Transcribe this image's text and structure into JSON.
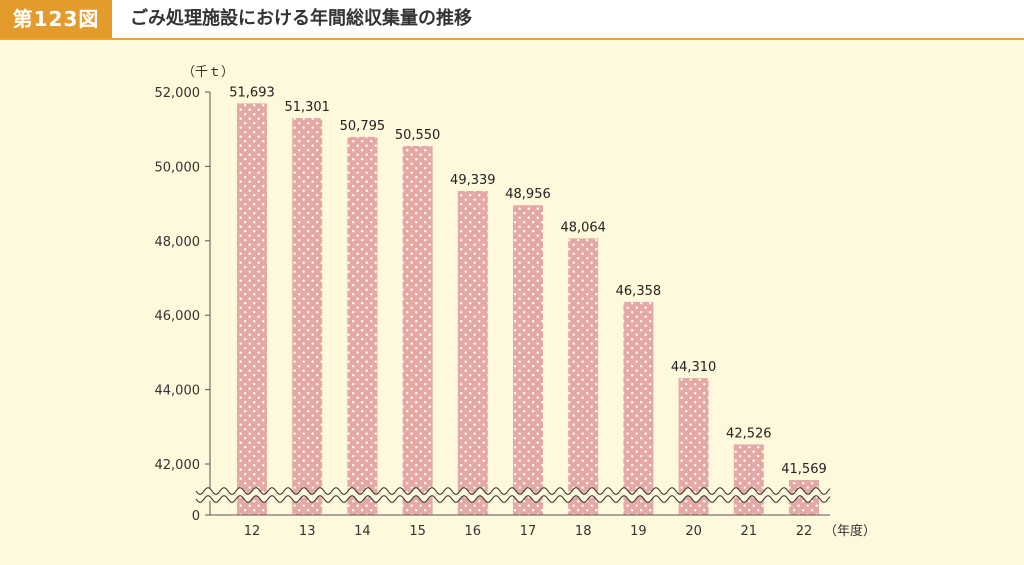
{
  "header": {
    "figure_label": "第123図",
    "title": "ごみ処理施設における年間総収集量の推移"
  },
  "colors": {
    "bar": "#e4a9a4",
    "dot": "#ffffff",
    "axis": "#555555",
    "accent": "#e39b2c"
  },
  "chart_data": {
    "type": "bar",
    "title": "ごみ処理施設における年間総収集量の推移",
    "ylabel": "（千ｔ）",
    "xlabel": "（年度）",
    "categories": [
      "12",
      "13",
      "14",
      "15",
      "16",
      "17",
      "18",
      "19",
      "20",
      "21",
      "22"
    ],
    "values": [
      51693,
      51301,
      50795,
      50550,
      49339,
      48956,
      48064,
      46358,
      44310,
      42526,
      41569
    ],
    "value_labels": [
      "51,693",
      "51,301",
      "50,795",
      "50,550",
      "49,339",
      "48,956",
      "48,064",
      "46,358",
      "44,310",
      "42,526",
      "41,569"
    ],
    "yticks": [
      42000,
      44000,
      46000,
      48000,
      50000,
      52000
    ],
    "ytick_labels": [
      "42,000",
      "44,000",
      "46,000",
      "48,000",
      "50,000",
      "52,000"
    ],
    "zero_label": "0",
    "ylim": [
      41000,
      52000
    ],
    "axis_break": true,
    "grid": false,
    "legend": "none"
  }
}
